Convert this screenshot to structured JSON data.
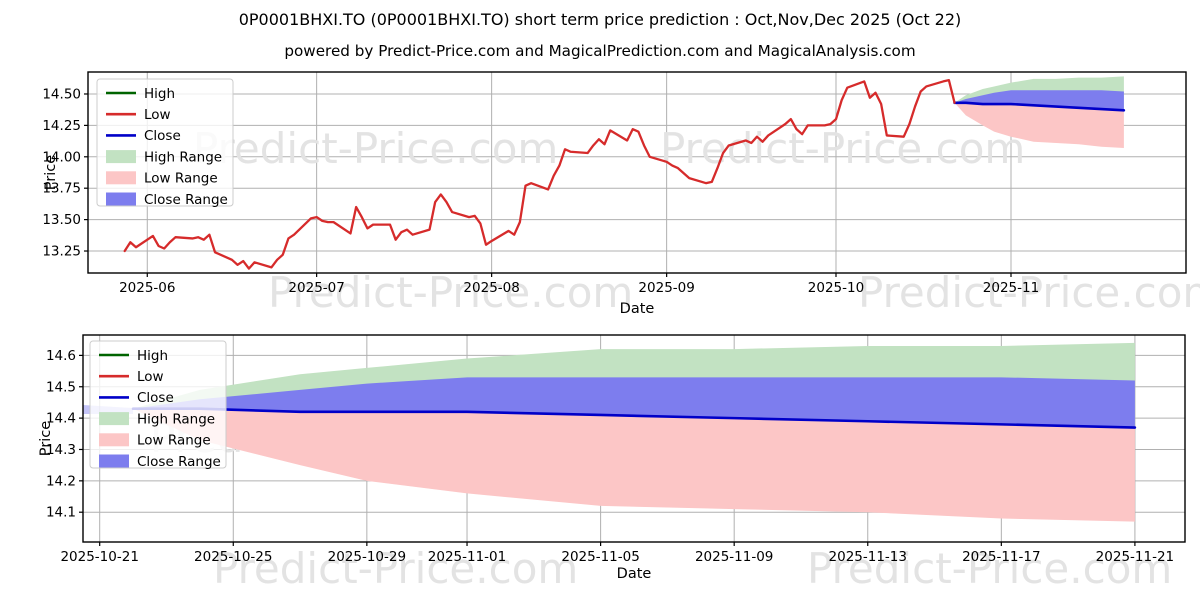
{
  "title": "0P0001BHXI.TO (0P0001BHXI.TO) short term price prediction : Oct,Nov,Dec 2025 (Oct 22)",
  "subtitle": "powered by Predict-Price.com and MagicalPrediction.com and MagicalAnalysis.com",
  "watermark_text": "Predict-Price.com",
  "colors": {
    "high_line": "#006400",
    "low_line": "#d62b2b",
    "close_line": "#0000c8",
    "high_range_fill": "#c2e2c2",
    "low_range_fill": "#fcc6c6",
    "close_range_fill": "#7d7dee",
    "grid": "#b0b0b0",
    "spine": "#000000",
    "watermark": "#e3e3e3",
    "legend_bg": "rgba(255,255,255,0.8)",
    "legend_border": "#cccccc"
  },
  "legend": [
    {
      "label": "High",
      "type": "line",
      "color": "#006400"
    },
    {
      "label": "Low",
      "type": "line",
      "color": "#d62b2b"
    },
    {
      "label": "Close",
      "type": "line",
      "color": "#0000c8"
    },
    {
      "label": "High Range",
      "type": "patch",
      "color": "#c2e2c2"
    },
    {
      "label": "Low Range",
      "type": "patch",
      "color": "#fcc6c6"
    },
    {
      "label": "Close Range",
      "type": "patch",
      "color": "#7d7dee"
    }
  ],
  "chart_data": [
    {
      "type": "line",
      "name": "history-with-prediction",
      "xlabel": "Date",
      "ylabel": "Price",
      "x_ticks": [
        "2025-06",
        "2025-07",
        "2025-08",
        "2025-09",
        "2025-10",
        "2025-11"
      ],
      "y_ticks": [
        13.25,
        13.5,
        13.75,
        14.0,
        14.25,
        14.5
      ],
      "y_tick_decimals": 2,
      "grid": true,
      "xlim": [
        "2025-05-21T12:00:00",
        "2025-12-02T00:00:00"
      ],
      "ylim": [
        13.075,
        14.675
      ],
      "series": {
        "low_history": {
          "name": "Low",
          "dates": [
            "2025-05-28",
            "2025-05-29",
            "2025-05-30",
            "2025-06-02",
            "2025-06-03",
            "2025-06-04",
            "2025-06-05",
            "2025-06-06",
            "2025-06-09",
            "2025-06-10",
            "2025-06-11",
            "2025-06-12",
            "2025-06-13",
            "2025-06-16",
            "2025-06-17",
            "2025-06-18",
            "2025-06-19",
            "2025-06-20",
            "2025-06-23",
            "2025-06-24",
            "2025-06-25",
            "2025-06-26",
            "2025-06-27",
            "2025-06-30",
            "2025-07-01",
            "2025-07-02",
            "2025-07-03",
            "2025-07-04",
            "2025-07-07",
            "2025-07-08",
            "2025-07-09",
            "2025-07-10",
            "2025-07-11",
            "2025-07-14",
            "2025-07-15",
            "2025-07-16",
            "2025-07-17",
            "2025-07-18",
            "2025-07-21",
            "2025-07-22",
            "2025-07-23",
            "2025-07-24",
            "2025-07-25",
            "2025-07-28",
            "2025-07-29",
            "2025-07-30",
            "2025-07-31",
            "2025-08-01",
            "2025-08-04",
            "2025-08-05",
            "2025-08-06",
            "2025-08-07",
            "2025-08-08",
            "2025-08-11",
            "2025-08-12",
            "2025-08-13",
            "2025-08-14",
            "2025-08-15",
            "2025-08-18",
            "2025-08-19",
            "2025-08-20",
            "2025-08-21",
            "2025-08-22",
            "2025-08-25",
            "2025-08-26",
            "2025-08-27",
            "2025-08-28",
            "2025-08-29",
            "2025-09-01",
            "2025-09-02",
            "2025-09-03",
            "2025-09-04",
            "2025-09-05",
            "2025-09-08",
            "2025-09-09",
            "2025-09-10",
            "2025-09-11",
            "2025-09-12",
            "2025-09-15",
            "2025-09-16",
            "2025-09-17",
            "2025-09-18",
            "2025-09-19",
            "2025-09-22",
            "2025-09-23",
            "2025-09-24",
            "2025-09-25",
            "2025-09-26",
            "2025-09-29",
            "2025-09-30",
            "2025-10-01",
            "2025-10-02",
            "2025-10-03",
            "2025-10-06",
            "2025-10-07",
            "2025-10-08",
            "2025-10-09",
            "2025-10-10",
            "2025-10-13",
            "2025-10-14",
            "2025-10-15",
            "2025-10-16",
            "2025-10-17",
            "2025-10-20",
            "2025-10-21",
            "2025-10-22"
          ],
          "values": [
            13.25,
            13.32,
            13.28,
            13.37,
            13.29,
            13.27,
            13.32,
            13.36,
            13.35,
            13.36,
            13.34,
            13.38,
            13.24,
            13.18,
            13.14,
            13.17,
            13.11,
            13.16,
            13.12,
            13.18,
            13.22,
            13.35,
            13.38,
            13.51,
            13.52,
            13.49,
            13.48,
            13.48,
            13.39,
            13.6,
            13.52,
            13.43,
            13.46,
            13.46,
            13.34,
            13.4,
            13.42,
            13.38,
            13.42,
            13.64,
            13.7,
            13.64,
            13.56,
            13.52,
            13.53,
            13.47,
            13.3,
            13.33,
            13.41,
            13.38,
            13.48,
            13.77,
            13.79,
            13.74,
            13.85,
            13.93,
            14.06,
            14.04,
            14.03,
            14.09,
            14.14,
            14.1,
            14.21,
            14.13,
            14.22,
            14.2,
            14.09,
            14.0,
            13.96,
            13.93,
            13.91,
            13.87,
            13.83,
            13.79,
            13.8,
            13.91,
            14.03,
            14.09,
            14.13,
            14.11,
            14.16,
            14.12,
            14.17,
            14.26,
            14.3,
            14.22,
            14.18,
            14.25,
            14.25,
            14.26,
            14.3,
            14.45,
            14.55,
            14.6,
            14.47,
            14.51,
            14.42,
            14.17,
            14.16,
            14.26,
            14.4,
            14.52,
            14.56,
            14.6,
            14.61,
            14.43
          ]
        },
        "prediction": {
          "dates": [
            "2025-10-22",
            "2025-10-24",
            "2025-10-27",
            "2025-10-29",
            "2025-11-01",
            "2025-11-05",
            "2025-11-09",
            "2025-11-13",
            "2025-11-17",
            "2025-11-21"
          ],
          "close": [
            14.43,
            14.43,
            14.42,
            14.42,
            14.42,
            14.41,
            14.4,
            14.39,
            14.38,
            14.37
          ],
          "close_top": [
            14.43,
            14.46,
            14.49,
            14.51,
            14.53,
            14.53,
            14.53,
            14.53,
            14.53,
            14.52
          ],
          "high_top": [
            14.43,
            14.49,
            14.54,
            14.56,
            14.59,
            14.62,
            14.62,
            14.63,
            14.63,
            14.64
          ],
          "low_bottom": [
            14.43,
            14.33,
            14.25,
            14.2,
            14.16,
            14.12,
            14.11,
            14.1,
            14.08,
            14.07
          ]
        }
      }
    },
    {
      "type": "area",
      "name": "prediction-zoom",
      "xlabel": "Date",
      "ylabel": "Price",
      "x_ticks": [
        "2025-10-21",
        "2025-10-25",
        "2025-10-29",
        "2025-11-01",
        "2025-11-05",
        "2025-11-09",
        "2025-11-13",
        "2025-11-17",
        "2025-11-21"
      ],
      "y_ticks": [
        14.1,
        14.2,
        14.3,
        14.4,
        14.5,
        14.6
      ],
      "y_tick_decimals": 1,
      "grid": true,
      "xlim": [
        "2025-10-20T12:00:00",
        "2025-11-22T12:00:00"
      ],
      "ylim": [
        14.005,
        14.665
      ],
      "series": {
        "prediction": {
          "dates": [
            "2025-10-22",
            "2025-10-24",
            "2025-10-27",
            "2025-10-29",
            "2025-11-01",
            "2025-11-05",
            "2025-11-09",
            "2025-11-13",
            "2025-11-17",
            "2025-11-21"
          ],
          "close": [
            14.43,
            14.43,
            14.42,
            14.42,
            14.42,
            14.41,
            14.4,
            14.39,
            14.38,
            14.37
          ],
          "close_top": [
            14.43,
            14.46,
            14.49,
            14.51,
            14.53,
            14.53,
            14.53,
            14.53,
            14.53,
            14.52
          ],
          "high_top": [
            14.43,
            14.49,
            14.54,
            14.56,
            14.59,
            14.62,
            14.62,
            14.63,
            14.63,
            14.64
          ],
          "low_bottom": [
            14.43,
            14.33,
            14.25,
            14.2,
            14.16,
            14.12,
            14.11,
            14.1,
            14.08,
            14.07
          ]
        }
      }
    }
  ]
}
